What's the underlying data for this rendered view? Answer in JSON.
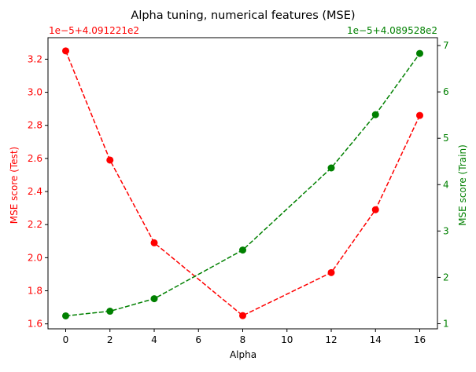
{
  "chart_data": {
    "type": "line",
    "title": "Alpha tuning, numerical features (MSE)",
    "xlabel": "Alpha",
    "x": [
      0,
      2,
      4,
      8,
      12,
      14,
      16
    ],
    "x_ticks": [
      "0",
      "2",
      "4",
      "6",
      "8",
      "10",
      "12",
      "14",
      "16"
    ],
    "xlim": [
      -0.8,
      16.8
    ],
    "grid": false,
    "left_axis": {
      "label": "MSE score (Test)",
      "offset_text": "1e−5+4.091221e2",
      "color": "#ff0000",
      "ylim": [
        1.57,
        3.33
      ],
      "ticks": [
        "1.6",
        "1.8",
        "2.0",
        "2.2",
        "2.4",
        "2.6",
        "2.8",
        "3.0",
        "3.2"
      ]
    },
    "right_axis": {
      "label": "MSE score (Train)",
      "offset_text": "1e−5+4.089528e2",
      "color": "#008000",
      "ylim": [
        0.89,
        7.17
      ],
      "ticks": [
        "1",
        "2",
        "3",
        "4",
        "5",
        "6",
        "7"
      ]
    },
    "series": [
      {
        "axis": "left",
        "color": "#ff0000",
        "line_style": "dashed",
        "marker": "circle",
        "values": [
          3.25,
          2.59,
          2.09,
          1.65,
          1.91,
          2.29,
          2.86
        ]
      },
      {
        "axis": "right",
        "color": "#008000",
        "line_style": "dashed",
        "marker": "circle",
        "values": [
          1.17,
          1.27,
          1.54,
          2.59,
          4.36,
          5.51,
          6.83
        ]
      }
    ]
  }
}
